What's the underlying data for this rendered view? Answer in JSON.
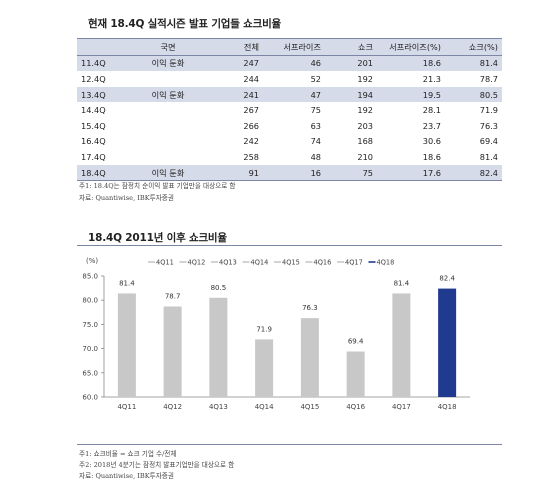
{
  "table": {
    "title": "현재 18.4Q 실적시즌 발표 기업들 쇼크비율",
    "headers": [
      "",
      "국면",
      "전체",
      "서프라이즈",
      "쇼크",
      "서프라이즈(%)",
      "쇼크(%)"
    ],
    "rows": [
      {
        "q": "11.4Q",
        "phase": "이익 둔화",
        "total": "247",
        "surprise": "46",
        "shock": "201",
        "surprise_pct": "18.6",
        "shock_pct": "81.4",
        "highlight": true
      },
      {
        "q": "12.4Q",
        "phase": "",
        "total": "244",
        "surprise": "52",
        "shock": "192",
        "surprise_pct": "21.3",
        "shock_pct": "78.7",
        "highlight": false
      },
      {
        "q": "13.4Q",
        "phase": "이익 둔화",
        "total": "241",
        "surprise": "47",
        "shock": "194",
        "surprise_pct": "19.5",
        "shock_pct": "80.5",
        "highlight": true
      },
      {
        "q": "14.4Q",
        "phase": "",
        "total": "267",
        "surprise": "75",
        "shock": "192",
        "surprise_pct": "28.1",
        "shock_pct": "71.9",
        "highlight": false
      },
      {
        "q": "15.4Q",
        "phase": "",
        "total": "266",
        "surprise": "63",
        "shock": "203",
        "surprise_pct": "23.7",
        "shock_pct": "76.3",
        "highlight": false
      },
      {
        "q": "16.4Q",
        "phase": "",
        "total": "242",
        "surprise": "74",
        "shock": "168",
        "surprise_pct": "30.6",
        "shock_pct": "69.4",
        "highlight": false
      },
      {
        "q": "17.4Q",
        "phase": "",
        "total": "258",
        "surprise": "48",
        "shock": "210",
        "surprise_pct": "18.6",
        "shock_pct": "81.4",
        "highlight": false
      },
      {
        "q": "18.4Q",
        "phase": "이익 둔화",
        "total": "91",
        "surprise": "16",
        "shock": "75",
        "surprise_pct": "17.6",
        "shock_pct": "82.4",
        "highlight": true
      }
    ],
    "note1": "주1: 18.4Q는 잠정치 순이익 발표 기업만을 대상으로 함",
    "source": "자료: Quantiwise, IBK투자증권"
  },
  "chart_title": "18.4Q 2011년 이후 쇼크비율",
  "chart_notes": {
    "note1": "주1: 쇼크비율 = 쇼크 기업 수/전체",
    "note2": "주2: 2018년 4분기는 잠정치 발표기업만을 대상으로 함",
    "source": "자료: Quantiwise, IBK투자증권"
  },
  "chart_data": {
    "type": "bar",
    "unit_label": "(%)",
    "categories": [
      "4Q11",
      "4Q12",
      "4Q13",
      "4Q14",
      "4Q15",
      "4Q16",
      "4Q17",
      "4Q18"
    ],
    "values": [
      81.4,
      78.7,
      80.5,
      71.9,
      76.3,
      69.4,
      81.4,
      82.4
    ],
    "legend": [
      "4Q11",
      "4Q12",
      "4Q13",
      "4Q14",
      "4Q15",
      "4Q16",
      "4Q17",
      "4Q18"
    ],
    "legend_position": "top",
    "ylim": [
      60.0,
      85.0
    ],
    "yticks": [
      "85.0",
      "80.0",
      "75.0",
      "70.0",
      "65.0",
      "60.0"
    ],
    "ytick_values": [
      85,
      80,
      75,
      70,
      65,
      60
    ],
    "colors": [
      "#c8c8c8",
      "#c8c8c8",
      "#c8c8c8",
      "#c8c8c8",
      "#c8c8c8",
      "#c8c8c8",
      "#c8c8c8",
      "#1f3a8f"
    ],
    "grid": false
  }
}
